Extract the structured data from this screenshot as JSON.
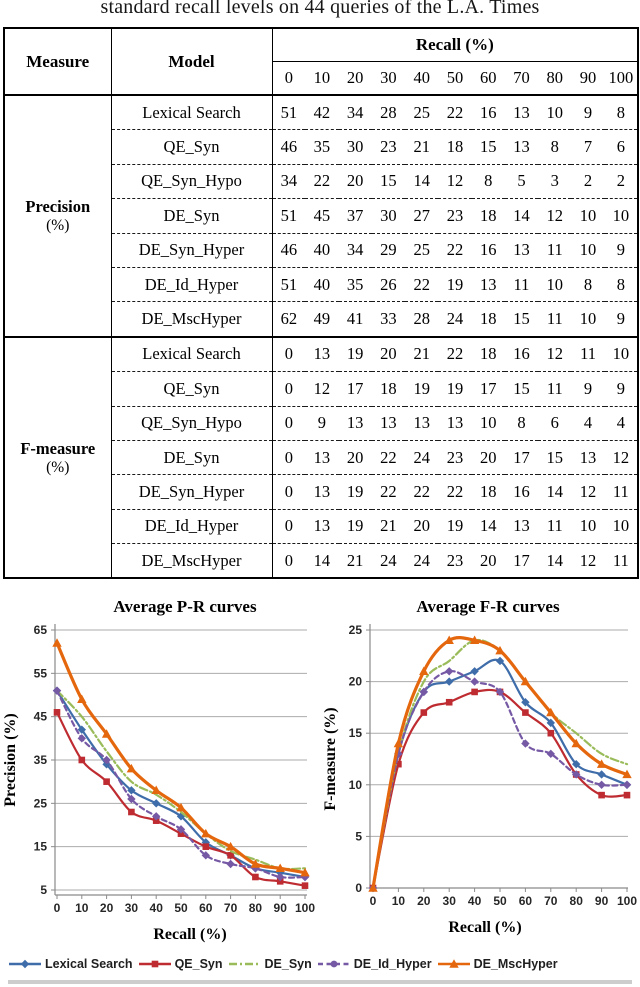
{
  "caption": "standard recall levels on 44 queries of the L.A. Times",
  "table": {
    "measure_header": "Measure",
    "model_header": "Model",
    "recall_header": "Recall (%)",
    "recall_levels": [
      "0",
      "10",
      "20",
      "30",
      "40",
      "50",
      "60",
      "70",
      "80",
      "90",
      "100"
    ],
    "groups": [
      {
        "measure": "Precision",
        "unit": "(%)",
        "rows": [
          {
            "model": "Lexical Search",
            "values": [
              51,
              42,
              34,
              28,
              25,
              22,
              16,
              13,
              10,
              9,
              8
            ]
          },
          {
            "model": "QE_Syn",
            "values": [
              46,
              35,
              30,
              23,
              21,
              18,
              15,
              13,
              8,
              7,
              6
            ]
          },
          {
            "model": "QE_Syn_Hypo",
            "values": [
              34,
              22,
              20,
              15,
              14,
              12,
              8,
              5,
              3,
              2,
              2
            ]
          },
          {
            "model": "DE_Syn",
            "values": [
              51,
              45,
              37,
              30,
              27,
              23,
              18,
              14,
              12,
              10,
              10
            ]
          },
          {
            "model": "DE_Syn_Hyper",
            "values": [
              46,
              40,
              34,
              29,
              25,
              22,
              16,
              13,
              11,
              10,
              9
            ]
          },
          {
            "model": "DE_Id_Hyper",
            "values": [
              51,
              40,
              35,
              26,
              22,
              19,
              13,
              11,
              10,
              8,
              8
            ]
          },
          {
            "model": "DE_MscHyper",
            "values": [
              62,
              49,
              41,
              33,
              28,
              24,
              18,
              15,
              11,
              10,
              9
            ]
          }
        ]
      },
      {
        "measure": "F-measure",
        "unit": "(%)",
        "rows": [
          {
            "model": "Lexical Search",
            "values": [
              0,
              13,
              19,
              20,
              21,
              22,
              18,
              16,
              12,
              11,
              10
            ]
          },
          {
            "model": "QE_Syn",
            "values": [
              0,
              12,
              17,
              18,
              19,
              19,
              17,
              15,
              11,
              9,
              9
            ]
          },
          {
            "model": "QE_Syn_Hypo",
            "values": [
              0,
              9,
              13,
              13,
              13,
              13,
              10,
              8,
              6,
              4,
              4
            ]
          },
          {
            "model": "DE_Syn",
            "values": [
              0,
              13,
              20,
              22,
              24,
              23,
              20,
              17,
              15,
              13,
              12
            ]
          },
          {
            "model": "DE_Syn_Hyper",
            "values": [
              0,
              13,
              19,
              22,
              22,
              22,
              18,
              16,
              14,
              12,
              11
            ]
          },
          {
            "model": "DE_Id_Hyper",
            "values": [
              0,
              13,
              19,
              21,
              20,
              19,
              14,
              13,
              11,
              10,
              10
            ]
          },
          {
            "model": "DE_MscHyper",
            "values": [
              0,
              14,
              21,
              24,
              24,
              23,
              20,
              17,
              14,
              12,
              11
            ]
          }
        ]
      }
    ]
  },
  "chart_data": [
    {
      "type": "line",
      "title": "Average P-R curves",
      "xlabel": "Recall (%)",
      "ylabel": "Precision (%)",
      "x": [
        0,
        10,
        20,
        30,
        40,
        50,
        60,
        70,
        80,
        90,
        100
      ],
      "ylim": [
        5,
        65
      ],
      "yticks": [
        5,
        15,
        25,
        35,
        45,
        55,
        65
      ],
      "grid": "horizontal",
      "legend_position": "shared-bottom",
      "series": [
        {
          "name": "Lexical Search",
          "values": [
            51,
            42,
            34,
            28,
            25,
            22,
            16,
            13,
            10,
            9,
            8
          ]
        },
        {
          "name": "QE_Syn",
          "values": [
            46,
            35,
            30,
            23,
            21,
            18,
            15,
            13,
            8,
            7,
            6
          ]
        },
        {
          "name": "DE_Syn",
          "values": [
            51,
            45,
            37,
            30,
            27,
            23,
            18,
            14,
            12,
            10,
            10
          ]
        },
        {
          "name": "DE_Id_Hyper",
          "values": [
            51,
            40,
            35,
            26,
            22,
            19,
            13,
            11,
            10,
            8,
            8
          ]
        },
        {
          "name": "DE_MscHyper",
          "values": [
            62,
            49,
            41,
            33,
            28,
            24,
            18,
            15,
            11,
            10,
            9
          ]
        }
      ]
    },
    {
      "type": "line",
      "title": "Average F-R curves",
      "xlabel": "Recall (%)",
      "ylabel": "F-measure (%)",
      "x": [
        0,
        10,
        20,
        30,
        40,
        50,
        60,
        70,
        80,
        90,
        100
      ],
      "ylim": [
        0,
        25
      ],
      "yticks": [
        0,
        5,
        10,
        15,
        20,
        25
      ],
      "grid": "horizontal",
      "legend_position": "shared-bottom",
      "series": [
        {
          "name": "Lexical Search",
          "values": [
            0,
            13,
            19,
            20,
            21,
            22,
            18,
            16,
            12,
            11,
            10
          ]
        },
        {
          "name": "QE_Syn",
          "values": [
            0,
            12,
            17,
            18,
            19,
            19,
            17,
            15,
            11,
            9,
            9
          ]
        },
        {
          "name": "DE_Syn",
          "values": [
            0,
            13,
            20,
            22,
            24,
            23,
            20,
            17,
            15,
            13,
            12
          ]
        },
        {
          "name": "DE_Id_Hyper",
          "values": [
            0,
            13,
            19,
            21,
            20,
            19,
            14,
            13,
            11,
            10,
            10
          ]
        },
        {
          "name": "DE_MscHyper",
          "values": [
            0,
            14,
            21,
            24,
            24,
            23,
            20,
            17,
            14,
            12,
            11
          ]
        }
      ]
    }
  ],
  "legend": {
    "items": [
      {
        "label": "Lexical Search",
        "color": "#3E6DAA",
        "marker": "diamond",
        "legend_marker": "diamond",
        "line_style": "solid"
      },
      {
        "label": "QE_Syn",
        "color": "#BE2C31",
        "marker": "square",
        "legend_marker": "square",
        "line_style": "solid"
      },
      {
        "label": "DE_Syn",
        "color": "#9ABB59",
        "marker": "none",
        "legend_marker": "none",
        "line_style": "dash-dot"
      },
      {
        "label": "DE_Id_Hyper",
        "color": "#7659A5",
        "marker": "diamond",
        "legend_marker": "circle",
        "line_style": "dashed"
      },
      {
        "label": "DE_MscHyper",
        "color": "#E5670D",
        "marker": "triangle",
        "legend_marker": "triangle",
        "line_style": "solid"
      }
    ]
  },
  "chart_colors": {
    "gridline": "#ABABAB",
    "axis": "#8A8A8A",
    "tick_label": "#262626"
  }
}
